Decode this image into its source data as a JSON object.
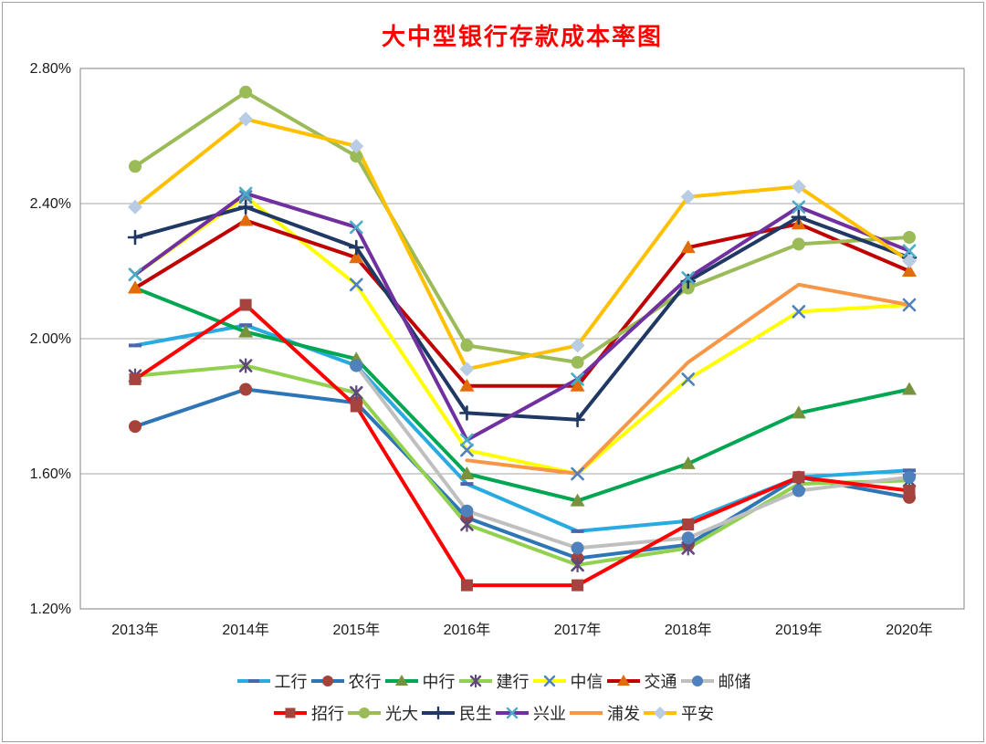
{
  "title": {
    "text": "大中型银行存款成本率图",
    "color": "#FF0000"
  },
  "axes": {
    "y_ticks": [
      {
        "value": 2.8,
        "label": "2.80%"
      },
      {
        "value": 2.4,
        "label": "2.40%"
      },
      {
        "value": 2.0,
        "label": "2.00%"
      },
      {
        "value": 1.6,
        "label": "1.60%"
      },
      {
        "value": 1.2,
        "label": "1.20%"
      }
    ]
  },
  "chart_data": {
    "type": "line",
    "title": "大中型银行存款成本率图",
    "categories": [
      "2013年",
      "2014年",
      "2015年",
      "2016年",
      "2017年",
      "2018年",
      "2019年",
      "2020年"
    ],
    "ylim": [
      1.2,
      2.8
    ],
    "ytick_step": 0.4,
    "ytick_labels": [
      "2.80%",
      "2.40%",
      "2.00%",
      "1.60%",
      "1.20%"
    ],
    "grid": true,
    "legend_position": "bottom",
    "legend_split": 7,
    "unit": "percent",
    "series": [
      {
        "name": "工行",
        "line_color": "#29ABE2",
        "marker": "dash",
        "marker_color": "#4A66AC",
        "values": [
          1.98,
          2.04,
          1.92,
          1.57,
          1.43,
          1.46,
          1.59,
          1.61
        ]
      },
      {
        "name": "农行",
        "line_color": "#2E75B6",
        "marker": "circle",
        "marker_color": "#A6423C",
        "values": [
          1.74,
          1.85,
          1.81,
          1.47,
          1.35,
          1.39,
          1.59,
          1.53
        ]
      },
      {
        "name": "中行",
        "line_color": "#00A651",
        "marker": "triangle",
        "marker_color": "#76923C",
        "values": [
          2.15,
          2.02,
          1.94,
          1.6,
          1.52,
          1.63,
          1.78,
          1.85
        ]
      },
      {
        "name": "建行",
        "line_color": "#92D050",
        "marker": "asterisk",
        "marker_color": "#5F497A",
        "values": [
          1.89,
          1.92,
          1.84,
          1.45,
          1.33,
          1.38,
          1.57,
          1.58
        ]
      },
      {
        "name": "中信",
        "line_color": "#FFFF00",
        "marker": "x",
        "marker_color": "#4F81BD",
        "values": [
          2.19,
          2.42,
          2.16,
          1.67,
          1.6,
          1.88,
          2.08,
          2.1
        ]
      },
      {
        "name": "交通",
        "line_color": "#C00000",
        "marker": "triangle",
        "marker_color": "#E36C0A",
        "values": [
          2.15,
          2.35,
          2.24,
          1.86,
          1.86,
          2.27,
          2.34,
          2.2
        ]
      },
      {
        "name": "邮储",
        "line_color": "#BFBFBF",
        "marker": "circle",
        "marker_color": "#4F81BD",
        "values": [
          null,
          null,
          1.92,
          1.49,
          1.38,
          1.41,
          1.55,
          1.59
        ]
      },
      {
        "name": "招行",
        "line_color": "#FF0000",
        "marker": "square",
        "marker_color": "#A5433E",
        "values": [
          1.88,
          2.1,
          1.8,
          1.27,
          1.27,
          1.45,
          1.59,
          1.55
        ]
      },
      {
        "name": "光大",
        "line_color": "#9BBB59",
        "marker": "circle",
        "marker_color": "#9BBB59",
        "values": [
          2.51,
          2.73,
          2.54,
          1.98,
          1.93,
          2.15,
          2.28,
          2.3
        ]
      },
      {
        "name": "民生",
        "line_color": "#1F3864",
        "marker": "plus",
        "marker_color": "#1F3864",
        "values": [
          2.3,
          2.39,
          2.27,
          1.78,
          1.76,
          2.17,
          2.36,
          2.24
        ]
      },
      {
        "name": "兴业",
        "line_color": "#7030A0",
        "marker": "x",
        "marker_color": "#4BACC6",
        "values": [
          2.19,
          2.43,
          2.33,
          1.7,
          1.88,
          2.18,
          2.39,
          2.26
        ]
      },
      {
        "name": "浦发",
        "line_color": "#F79646",
        "marker": "none",
        "marker_color": "#F79646",
        "values": [
          null,
          null,
          null,
          1.64,
          1.6,
          1.93,
          2.16,
          2.1
        ]
      },
      {
        "name": "平安",
        "line_color": "#FFC000",
        "marker": "diamond",
        "marker_color": "#B8CCE4",
        "values": [
          2.39,
          2.65,
          2.57,
          1.91,
          1.98,
          2.42,
          2.45,
          2.23
        ]
      }
    ]
  }
}
